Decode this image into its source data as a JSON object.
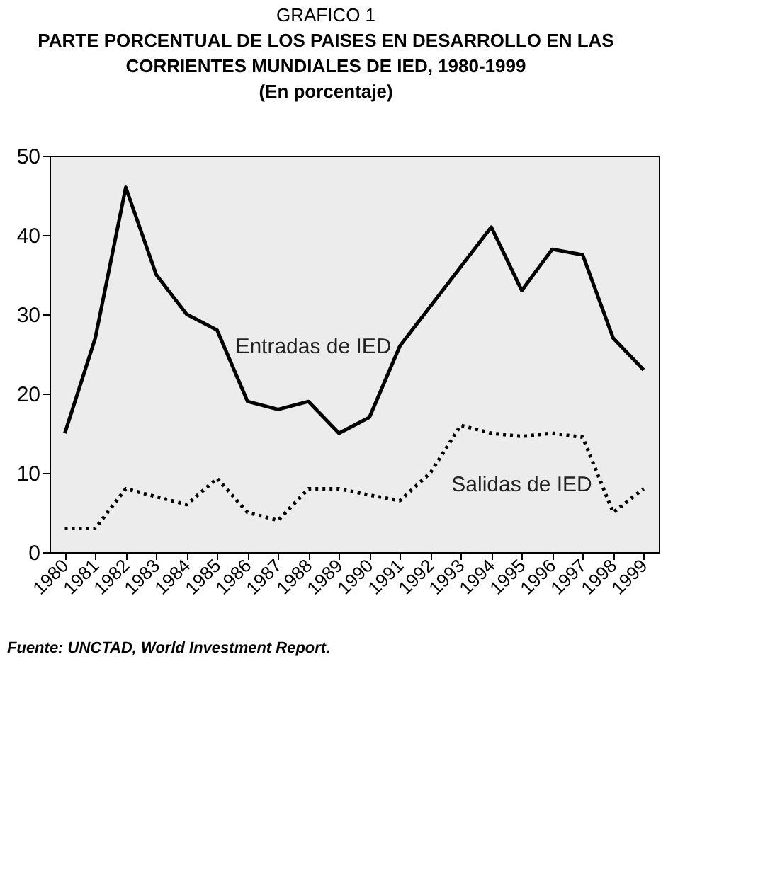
{
  "chart_data": {
    "type": "line",
    "title": "PARTE PORCENTUAL DE LOS PAISES EN DESARROLLO EN LAS CORRIENTES MUNDIALES DE IED, 1980-1999",
    "subtitle": "(En porcentaje)",
    "annotations": [
      "GRAFICO 1",
      "Fuente: UNCTAD, World Investment Report."
    ],
    "categories": [
      "1980",
      "1981",
      "1982",
      "1983",
      "1984",
      "1985",
      "1986",
      "1987",
      "1988",
      "1989",
      "1990",
      "1991",
      "1992",
      "1993",
      "1994",
      "1995",
      "1996",
      "1997",
      "1998",
      "1999"
    ],
    "series": [
      {
        "name": "Entradas de IED",
        "color": "#000000",
        "line_style": "solid",
        "values": [
          15,
          27,
          46,
          35,
          30,
          28,
          19,
          18,
          19,
          15,
          17,
          26,
          31,
          36,
          41,
          33,
          38.2,
          37.5,
          27,
          23
        ]
      },
      {
        "name": "Salidas de IED",
        "color": "#000000",
        "line_style": "dotted",
        "values": [
          3,
          3,
          8,
          7,
          6,
          9.3,
          5,
          4,
          8,
          8,
          7.2,
          6.5,
          10,
          16,
          15,
          14.6,
          15,
          14.5,
          5,
          8
        ]
      }
    ],
    "ylim": [
      0,
      50
    ],
    "yticks": [
      0,
      10,
      20,
      30,
      40,
      50
    ],
    "grid": false,
    "marker": "none"
  }
}
